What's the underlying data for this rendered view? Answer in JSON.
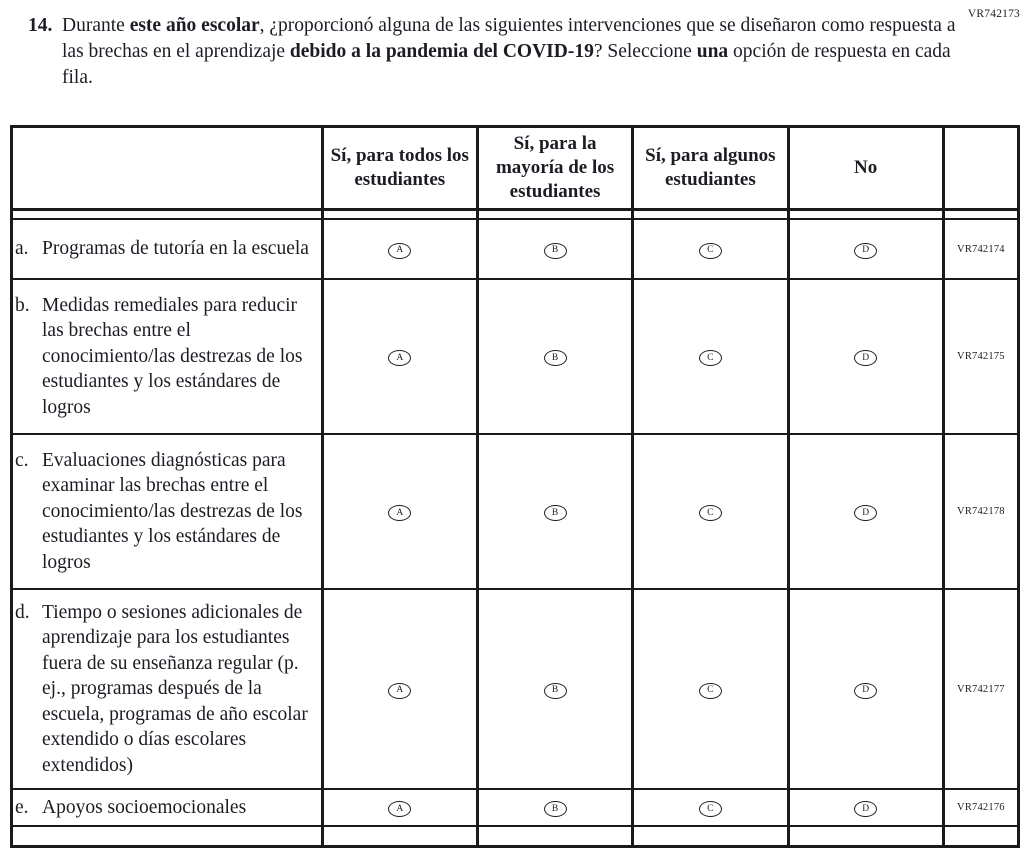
{
  "page_code": "VR742173",
  "question": {
    "number": "14.",
    "segments": [
      {
        "text": "Durante ",
        "bold": false
      },
      {
        "text": "este año escolar",
        "bold": true
      },
      {
        "text": ", ¿proporcionó alguna de las siguientes intervenciones que se diseñaron como respuesta a las brechas en el aprendizaje ",
        "bold": false
      },
      {
        "text": "debido a la pandemia del COVID-19",
        "bold": true
      },
      {
        "text": "? Seleccione ",
        "bold": false
      },
      {
        "text": "una",
        "bold": true
      },
      {
        "text": " opción de respuesta en cada fila.",
        "bold": false
      }
    ]
  },
  "table": {
    "headers": {
      "label": "",
      "col1": "Sí, para todos los estudiantes",
      "col2": "Sí, para la mayoría de los estudiantes",
      "col3": "Sí, para algunos estudiantes",
      "col4": "No",
      "code": ""
    },
    "options": [
      "A",
      "B",
      "C",
      "D"
    ],
    "rows": [
      {
        "letter": "a.",
        "label": "Programas de tutoría en la escuela",
        "code": "VR742174",
        "row_class": "row-a"
      },
      {
        "letter": "b.",
        "label": "Medidas remediales para reducir las brechas entre el conocimiento/las destrezas de los estudiantes y los estándares de logros",
        "code": "VR742175",
        "row_class": "row-b"
      },
      {
        "letter": "c.",
        "label": "Evaluaciones diagnósticas para examinar las brechas entre el conocimiento/las destrezas de los estudiantes y los estándares de logros",
        "code": "VR742178",
        "row_class": "row-c"
      },
      {
        "letter": "d.",
        "label": "Tiempo o sesiones adicionales de aprendizaje para los estudiantes fuera de su enseñanza regular (p. ej., programas después de la escuela, programas de año escolar extendido o días escolares extendidos)",
        "code": "VR742177",
        "row_class": "row-d"
      },
      {
        "letter": "e.",
        "label": "Apoyos socioemocionales",
        "code": "VR742176",
        "row_class": "row-e"
      }
    ]
  },
  "colors": {
    "ink": "#1c1c24",
    "border": "#1a1a1a",
    "background": "#ffffff"
  }
}
